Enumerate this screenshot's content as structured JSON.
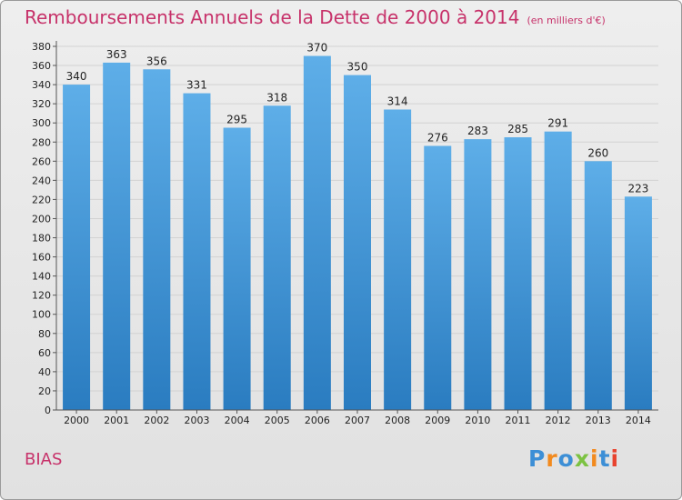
{
  "header": {
    "title": "Remboursements Annuels de la Dette de 2000 à 2014",
    "unit": "(en milliers d'€)"
  },
  "footer": {
    "commune": "BIAS",
    "brand": "Proxiti"
  },
  "colors": {
    "title": "#c7326a",
    "bar_top": "#5eaee8",
    "bar_bottom": "#2a7cc0",
    "brand": [
      "#3d8fd6",
      "#f28a1e",
      "#3d8fd6",
      "#7cc242",
      "#f28a1e",
      "#3d8fd6",
      "#e8432e"
    ]
  },
  "chart_data": {
    "type": "bar",
    "title": "Remboursements Annuels de la Dette de 2000 à 2014",
    "subtitle": "(en milliers d'€)",
    "categories": [
      "2000",
      "2001",
      "2002",
      "2003",
      "2004",
      "2005",
      "2006",
      "2007",
      "2008",
      "2009",
      "2010",
      "2011",
      "2012",
      "2013",
      "2014"
    ],
    "values": [
      340,
      363,
      356,
      331,
      295,
      318,
      370,
      350,
      314,
      276,
      283,
      285,
      291,
      260,
      223
    ],
    "ylim": [
      0,
      380
    ],
    "yticks": [
      0,
      20,
      40,
      60,
      80,
      100,
      120,
      140,
      160,
      180,
      200,
      220,
      240,
      260,
      280,
      300,
      320,
      340,
      360,
      380
    ],
    "grid": true,
    "legend": "none"
  }
}
